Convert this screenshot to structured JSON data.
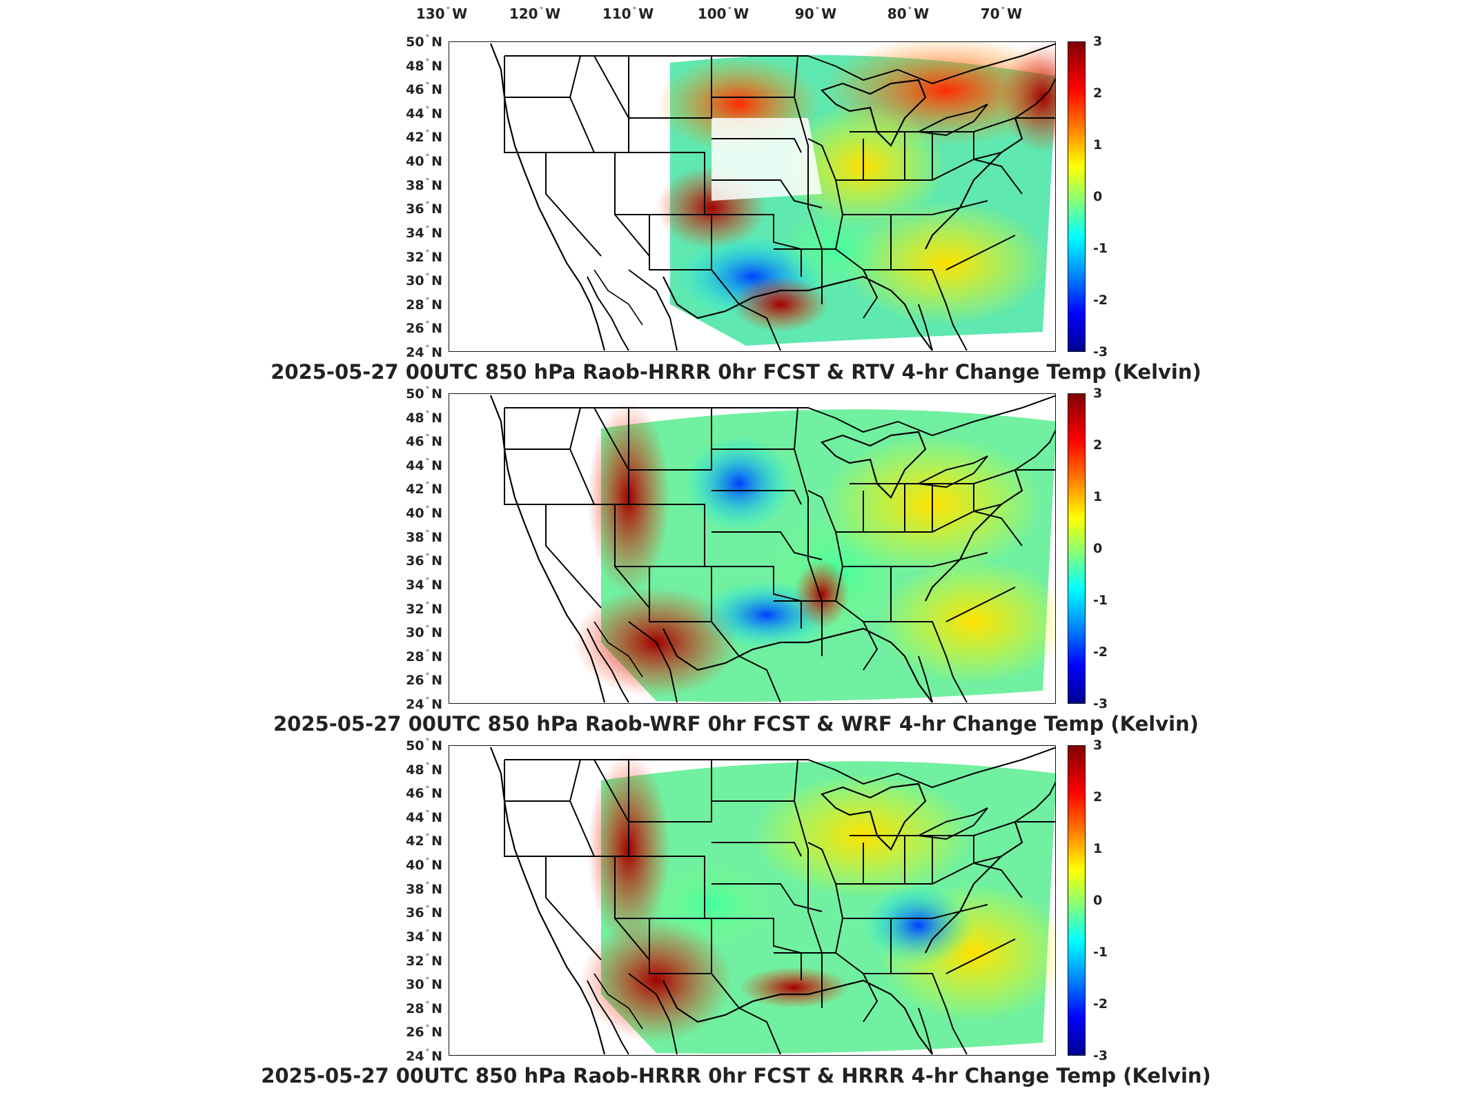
{
  "lon_labels": [
    {
      "value": "130",
      "suffix": "W"
    },
    {
      "value": "120",
      "suffix": "W"
    },
    {
      "value": "110",
      "suffix": "W"
    },
    {
      "value": "100",
      "suffix": "W"
    },
    {
      "value": "90",
      "suffix": "W"
    },
    {
      "value": "80",
      "suffix": "W"
    },
    {
      "value": "70",
      "suffix": "W"
    }
  ],
  "lat_labels": [
    "50",
    "48",
    "46",
    "44",
    "42",
    "40",
    "38",
    "36",
    "34",
    "32",
    "30",
    "28",
    "26",
    "24"
  ],
  "lat_suffix": "N",
  "colorbar": {
    "ticks": [
      "3",
      "2",
      "1",
      "0",
      "-1",
      "-2",
      "-3"
    ],
    "range": [
      -3,
      3
    ],
    "colors": [
      "#800000",
      "#ff0000",
      "#ff8000",
      "#ffff00",
      "#80ff80",
      "#00ffff",
      "#0080ff",
      "#0000ff",
      "#000090"
    ]
  },
  "panels": [
    {
      "title": "2025-05-27 00UTC 850 hPa Raob-HRRR 0hr FCST & RTV 4-hr Change Temp (Kelvin)"
    },
    {
      "title": "2025-05-27 00UTC 850 hPa Raob-WRF 0hr FCST & WRF 4-hr Change Temp (Kelvin)"
    },
    {
      "title": "2025-05-27 00UTC 850 hPa Raob-HRRR 0hr FCST & HRRR 4-hr Change Temp (Kelvin)"
    }
  ]
}
